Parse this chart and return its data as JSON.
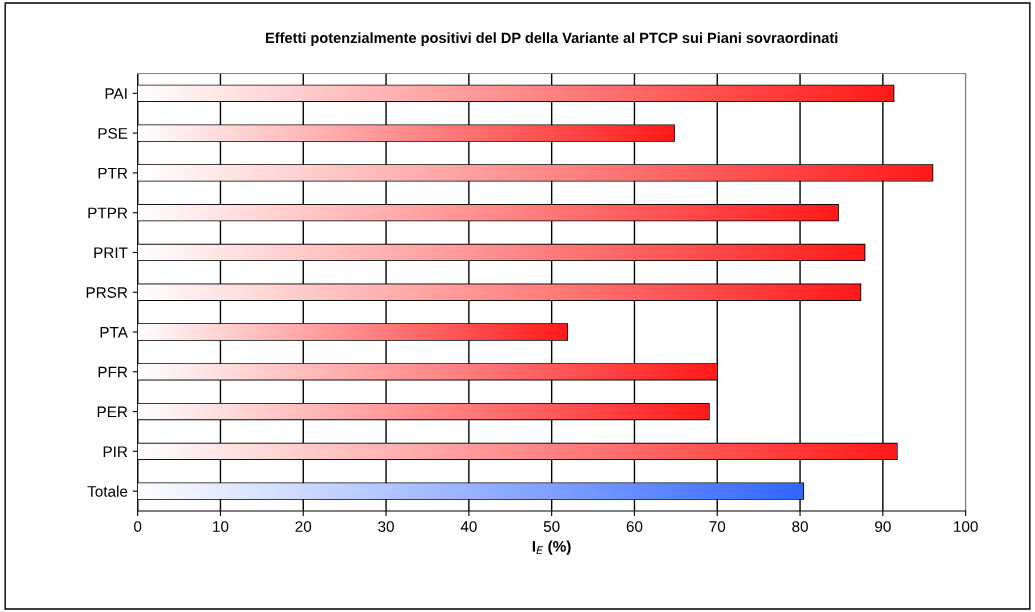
{
  "chart_data": {
    "type": "bar",
    "orientation": "horizontal",
    "title": "Effetti potenzialmente positivi del DP della Variante al PTCP sui Piani sovraordinati",
    "xlabel": "I$_{E}$ (%)",
    "categories": [
      "PAI",
      "PSE",
      "PTR",
      "PTPR",
      "PRIT",
      "PRSR",
      "PTA",
      "PFR",
      "PER",
      "PIR",
      "Totale"
    ],
    "values": [
      91.3,
      64.8,
      96.0,
      84.6,
      87.8,
      87.3,
      51.9,
      70.0,
      69.0,
      91.7,
      80.4
    ],
    "colors": [
      "#ff1a1a",
      "#ff1a1a",
      "#ff1a1a",
      "#ff1a1a",
      "#ff1a1a",
      "#ff1a1a",
      "#ff1a1a",
      "#ff1a1a",
      "#ff1a1a",
      "#ff1a1a",
      "#3366ff"
    ],
    "xlim": [
      0,
      100
    ],
    "xticks": [
      0,
      10,
      20,
      30,
      40,
      50,
      60,
      70,
      80,
      90,
      100
    ],
    "grid": "x"
  }
}
